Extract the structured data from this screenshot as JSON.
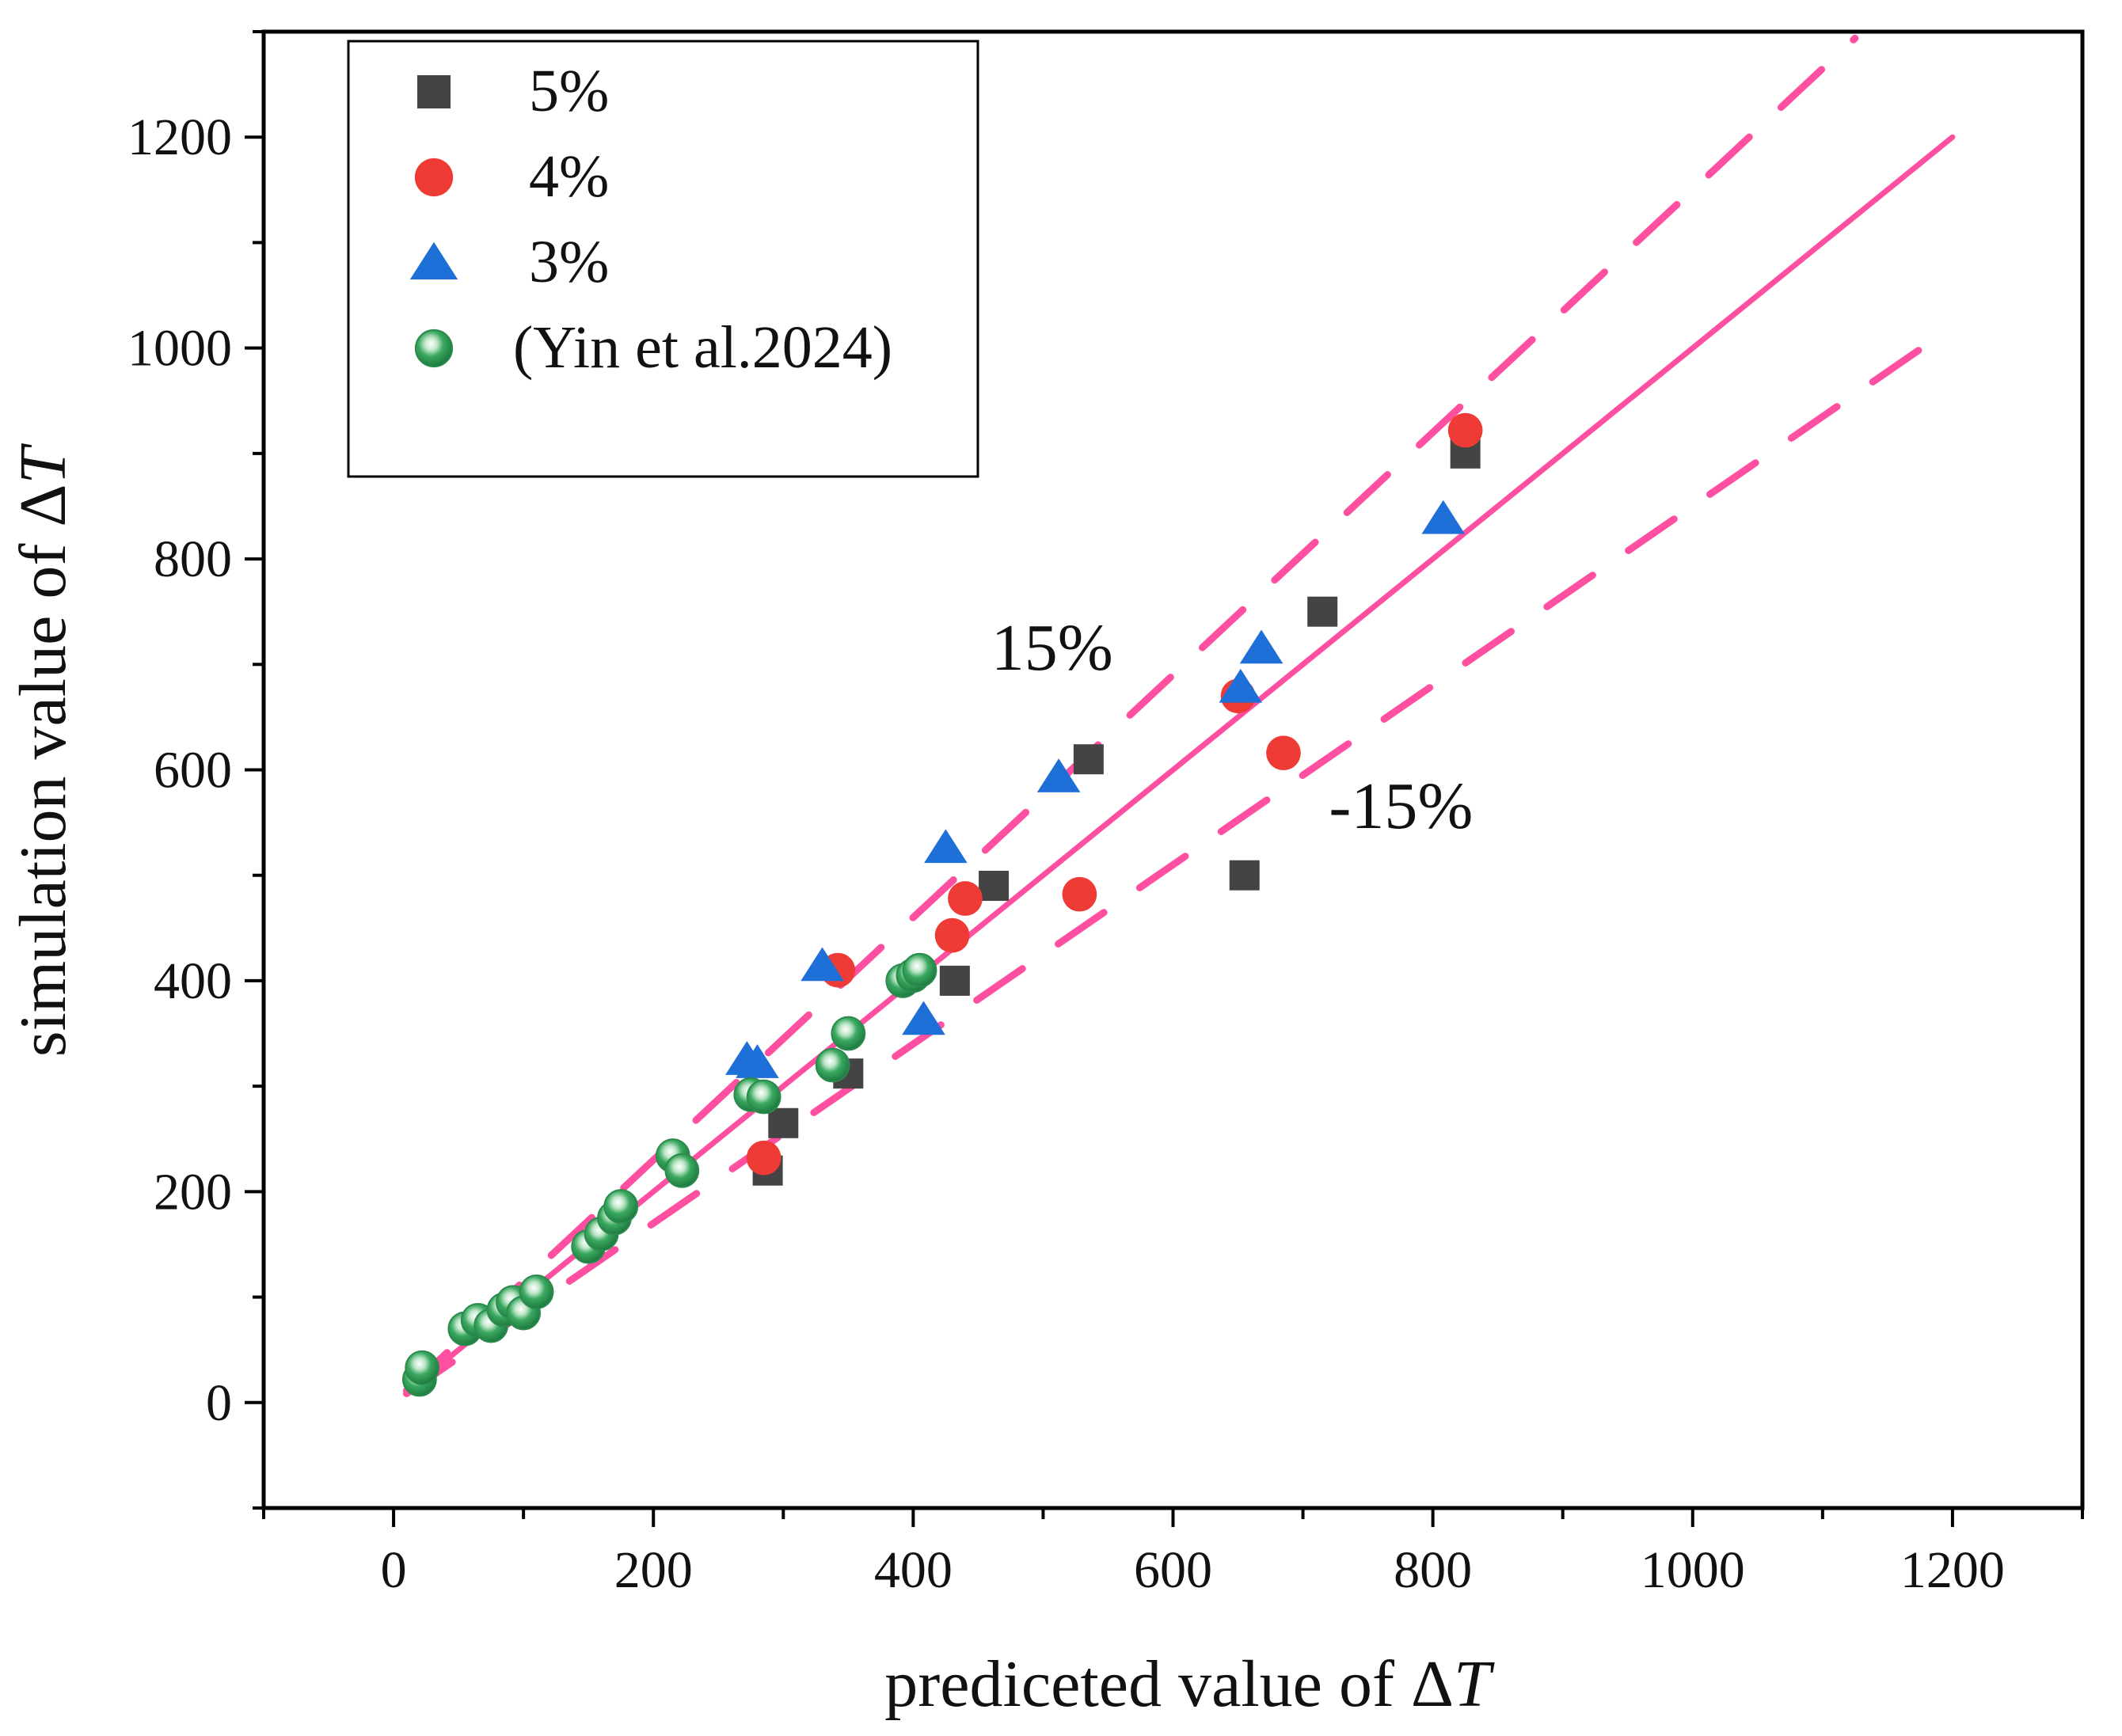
{
  "chart_data": {
    "type": "scatter",
    "title": "",
    "xlabel": "prediceted value of ΔT",
    "xlabel_prefix": "prediceted value of ",
    "ylabel": "simulation value of ΔT",
    "ylabel_prefix": "simulation value of ",
    "symbol": "Δ",
    "var": "T",
    "xlim": [
      -100,
      1300
    ],
    "ylim": [
      -100,
      1300
    ],
    "xticks": [
      0,
      200,
      400,
      600,
      800,
      1000,
      1200
    ],
    "yticks": [
      0,
      200,
      400,
      600,
      800,
      1000,
      1200
    ],
    "grid": false,
    "legend_position": "top-left",
    "series": [
      {
        "name": "5%",
        "marker": "square",
        "color": "#444444",
        "points": [
          [
            288,
            220
          ],
          [
            300,
            265
          ],
          [
            350,
            312
          ],
          [
            432,
            400
          ],
          [
            462,
            490
          ],
          [
            535,
            610
          ],
          [
            655,
            500
          ],
          [
            715,
            750
          ],
          [
            825,
            900
          ]
        ]
      },
      {
        "name": "4%",
        "marker": "circle",
        "color": "#ee3b36",
        "points": [
          [
            285,
            232
          ],
          [
            342,
            410
          ],
          [
            430,
            443
          ],
          [
            440,
            478
          ],
          [
            528,
            482
          ],
          [
            650,
            670
          ],
          [
            685,
            616
          ],
          [
            825,
            922
          ]
        ]
      },
      {
        "name": "3%",
        "marker": "triangle",
        "color": "#1f6fd8",
        "points": [
          [
            272,
            325
          ],
          [
            280,
            322
          ],
          [
            330,
            414
          ],
          [
            408,
            363
          ],
          [
            425,
            526
          ],
          [
            512,
            593
          ],
          [
            652,
            678
          ],
          [
            668,
            715
          ],
          [
            808,
            838
          ]
        ]
      },
      {
        "name": "(Yin et al.2024)",
        "marker": "sphere",
        "color": "#3aa860",
        "points": [
          [
            20,
            22
          ],
          [
            22,
            33
          ],
          [
            55,
            70
          ],
          [
            65,
            78
          ],
          [
            75,
            73
          ],
          [
            85,
            88
          ],
          [
            92,
            95
          ],
          [
            100,
            85
          ],
          [
            110,
            105
          ],
          [
            150,
            148
          ],
          [
            160,
            160
          ],
          [
            170,
            175
          ],
          [
            175,
            186
          ],
          [
            215,
            234
          ],
          [
            222,
            220
          ],
          [
            275,
            292
          ],
          [
            285,
            290
          ],
          [
            338,
            320
          ],
          [
            350,
            350
          ],
          [
            392,
            400
          ],
          [
            400,
            405
          ],
          [
            405,
            410
          ]
        ]
      }
    ],
    "reference_lines": [
      {
        "name": "y=x",
        "style": "solid",
        "slope": 1.0,
        "x_range": [
          10,
          1200
        ]
      },
      {
        "name": "+15%",
        "style": "dashed",
        "slope": 1.15,
        "x_range": [
          10,
          1125
        ]
      },
      {
        "name": "-15%",
        "style": "dashed",
        "slope": 0.85,
        "x_range": [
          10,
          1200
        ]
      }
    ],
    "annotations": [
      {
        "text": "15%",
        "x": 460,
        "y": 695
      },
      {
        "text": "-15%",
        "x": 720,
        "y": 545
      }
    ]
  },
  "colors": {
    "reference_line": "#ff4fa0",
    "axes": "#000000"
  }
}
